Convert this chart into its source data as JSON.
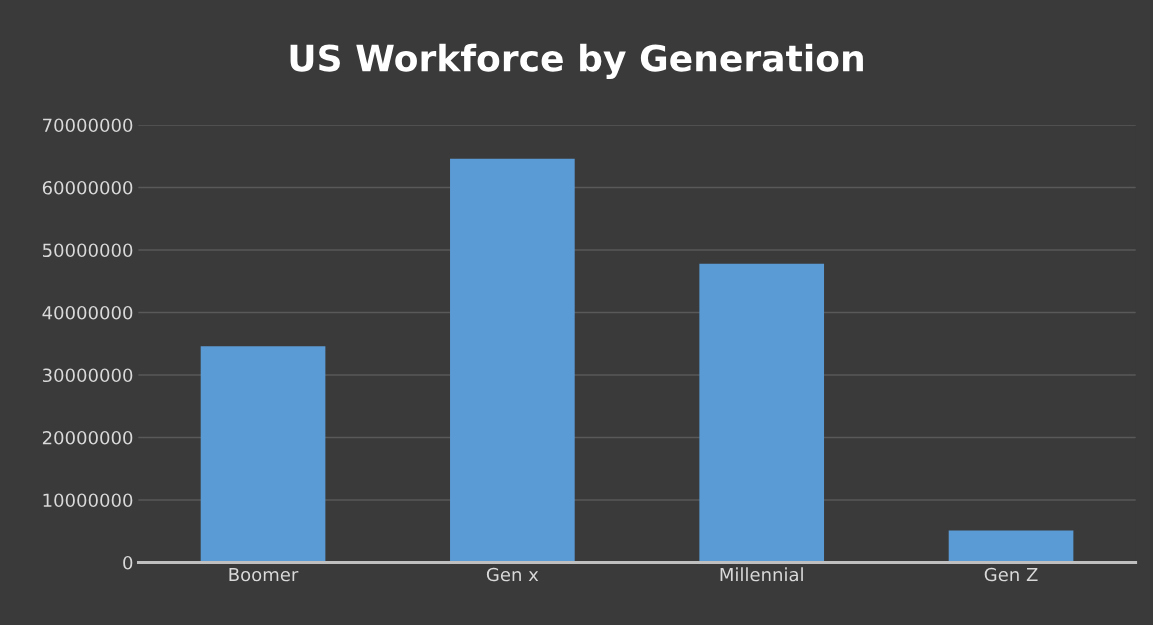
{
  "chart_data": {
    "type": "bar",
    "title": "US Workforce by Generation",
    "categories": [
      "Boomer",
      "Gen x",
      "Millennial",
      "Gen Z"
    ],
    "values": [
      34600000,
      64600000,
      47800000,
      5100000
    ],
    "color": "#5b9bd5",
    "ylim": [
      0,
      70000000
    ],
    "yticks": [
      0,
      10000000,
      20000000,
      30000000,
      40000000,
      50000000,
      60000000,
      70000000
    ],
    "grid": "y"
  }
}
